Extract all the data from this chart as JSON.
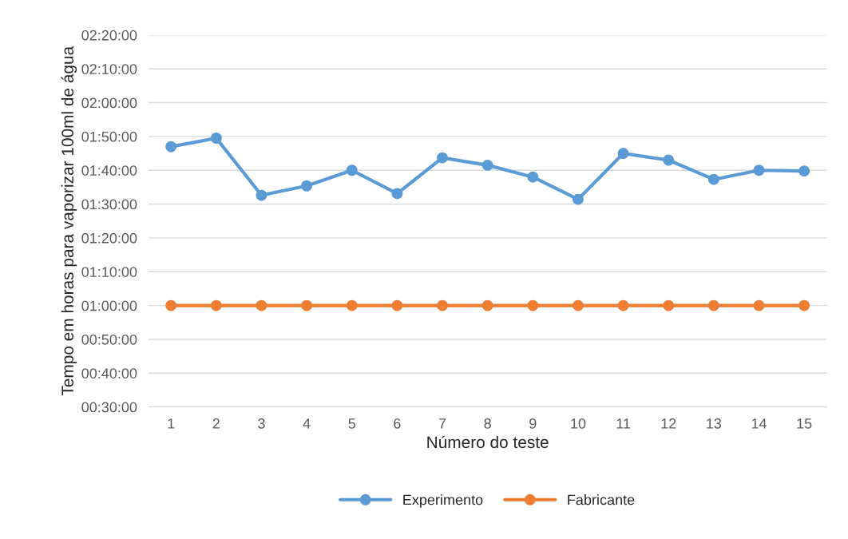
{
  "chart_data": {
    "type": "line",
    "xlabel": "Número do teste",
    "ylabel": "Tempo em horas para vaporizar 100ml de água",
    "categories": [
      "1",
      "2",
      "3",
      "4",
      "5",
      "6",
      "7",
      "8",
      "9",
      "10",
      "11",
      "12",
      "13",
      "14",
      "15"
    ],
    "series": [
      {
        "name": "Experimento",
        "color": "#5b9bd5",
        "values": [
          107,
          109.5,
          92.6,
          95.4,
          100,
          93.1,
          103.7,
          101.5,
          98,
          91.4,
          105,
          103,
          97.3,
          100,
          99.8
        ]
      },
      {
        "name": "Fabricante",
        "color": "#ed7d31",
        "values": [
          60,
          60,
          60,
          60,
          60,
          60,
          60,
          60,
          60,
          60,
          60,
          60,
          60,
          60,
          60
        ]
      }
    ],
    "ylim": [
      30,
      140
    ],
    "yticks": [
      {
        "value": 30,
        "label": "00:30:00"
      },
      {
        "value": 40,
        "label": "00:40:00"
      },
      {
        "value": 50,
        "label": "00:50:00"
      },
      {
        "value": 60,
        "label": "01:00:00"
      },
      {
        "value": 70,
        "label": "01:10:00"
      },
      {
        "value": 80,
        "label": "01:20:00"
      },
      {
        "value": 90,
        "label": "01:30:00"
      },
      {
        "value": 100,
        "label": "01:40:00"
      },
      {
        "value": 110,
        "label": "01:50:00"
      },
      {
        "value": 120,
        "label": "02:00:00"
      },
      {
        "value": 130,
        "label": "02:10:00"
      },
      {
        "value": 140,
        "label": "02:20:00"
      }
    ],
    "grid": "y",
    "legend": "bottom",
    "marker": "circle",
    "line_style": "solid"
  }
}
